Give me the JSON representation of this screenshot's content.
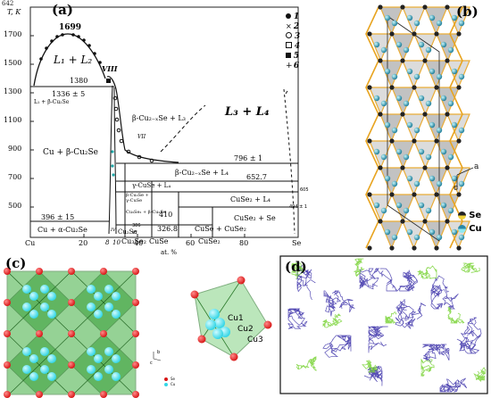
{
  "page_number": "642",
  "panels": {
    "a": "(a)",
    "b": "(b)",
    "c": "(c)",
    "d": "(d)"
  },
  "phase_diagram": {
    "y_axis_label": "T, K",
    "y_ticks": [
      "1700",
      "1500",
      "1300",
      "1100",
      "900",
      "700",
      "500"
    ],
    "x_ticks": [
      "Cu",
      "20",
      "8",
      "10",
      "40",
      "60",
      "80",
      "Se"
    ],
    "x_axis_label": "at. %",
    "compounds": [
      "Cu₂Se",
      "Cu₃Se₂",
      "CuSe",
      "CuSe₂"
    ],
    "temperatures": {
      "t1699": "1699",
      "t1380": "1380",
      "t1336": "1336 ± 5",
      "t796": "796 ± 1",
      "t652": "652.7",
      "t410": "410",
      "t396": "396 ± 15",
      "t326": "326.8",
      "t605": "605",
      "t494": "494 ± 1",
      "t386": "386"
    },
    "regions": {
      "l1l2": "L₁ + L₂",
      "viii": "VIII",
      "l3l4": "L₃ + L₄",
      "l1bcu": "L₁ + β-Cu₂Se",
      "bcu_l3": "β-Cu₂₋ₓSe + L₃",
      "cu_bcu": "Cu + β-Cu₂Se",
      "bcu_l4": "β-Cu₂₋ₓSe + L₄",
      "gcuse_l4": "γ-CuSe + L₄",
      "cuse2_l4": "CuSe₂ + L₄",
      "bcu_gcuse": "β-Cu₂Se + γ-CuSe",
      "gcuse_cuse2": "γ-CuSe + γ-CuSe₂",
      "cuse2_se": "CuSe₂ + Se",
      "cu_acu": "Cu + α-Cu₂Se",
      "cuse_cuse2": "CuSe + CuSe₂",
      "cu3_bcu": "Cu₃Se₂ + β-Cu₂Se",
      "iv": "IV",
      "vi": "VI",
      "vii": "VII"
    },
    "legend": [
      "1",
      "2",
      "3",
      "4",
      "5",
      "6"
    ]
  },
  "crystal": {
    "axis_a": "a",
    "axis_c": "c",
    "legend": [
      "Se",
      "Cu"
    ]
  },
  "cluster": {
    "labels": [
      "Cu1",
      "Cu2",
      "Cu3"
    ],
    "axis_b": "b",
    "axis_c": "c",
    "legend": [
      "Se",
      "Cu"
    ]
  },
  "colors": {
    "se_red": "#d81818",
    "cu_cyan": "#35d6e6",
    "octa_green": "#2f9a2f",
    "frame_orange": "#e8a420",
    "trace_blue": "#3a2fa8",
    "trace_green": "#7bd43a"
  }
}
